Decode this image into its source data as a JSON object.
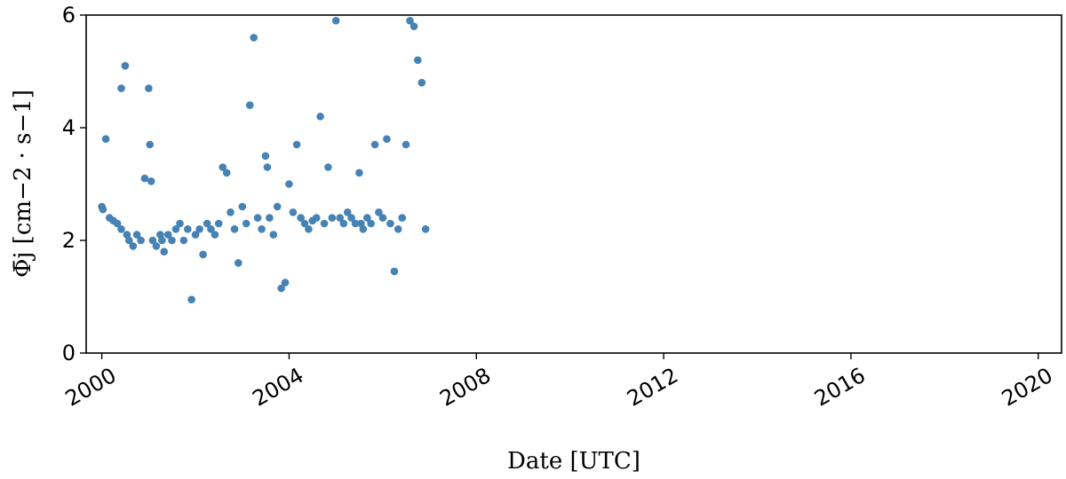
{
  "chart_data": {
    "type": "scatter",
    "title": "",
    "xlabel": "Date [UTC]",
    "ylabel": "Φ̄j [cm−2 · s−1]",
    "x_is_date": true,
    "xlim": [
      "1999-09-01",
      "2020-07-01"
    ],
    "ylim": [
      0,
      6
    ],
    "x_tick_labels": [
      "2000",
      "2004",
      "2008",
      "2012",
      "2016",
      "2020"
    ],
    "y_tick_labels": [
      "0",
      "2",
      "4",
      "6"
    ],
    "grid": false,
    "legend": false,
    "marker_color": "#4682b4",
    "series": [
      {
        "points": [
          [
            "2000-01-01",
            2.6
          ],
          [
            "2000-01-10",
            2.55
          ],
          [
            "2000-02-01",
            3.8
          ],
          [
            "2000-03-01",
            2.4
          ],
          [
            "2000-04-01",
            2.35
          ],
          [
            "2000-05-01",
            2.3
          ],
          [
            "2000-06-01",
            2.2
          ],
          [
            "2000-06-01",
            4.7
          ],
          [
            "2000-07-01",
            5.1
          ],
          [
            "2000-07-15",
            2.1
          ],
          [
            "2000-08-01",
            2.0
          ],
          [
            "2000-09-01",
            1.9
          ],
          [
            "2000-10-01",
            2.1
          ],
          [
            "2000-11-01",
            2.0
          ],
          [
            "2000-12-01",
            3.1
          ],
          [
            "2001-01-01",
            4.7
          ],
          [
            "2001-01-10",
            3.7
          ],
          [
            "2001-01-20",
            3.05
          ],
          [
            "2001-02-01",
            2.0
          ],
          [
            "2001-03-01",
            1.9
          ],
          [
            "2001-04-01",
            2.1
          ],
          [
            "2001-04-15",
            2.0
          ],
          [
            "2001-05-01",
            1.8
          ],
          [
            "2001-06-01",
            2.1
          ],
          [
            "2001-07-01",
            2.0
          ],
          [
            "2001-08-01",
            2.2
          ],
          [
            "2001-09-01",
            2.3
          ],
          [
            "2001-10-01",
            2.0
          ],
          [
            "2001-11-01",
            2.2
          ],
          [
            "2001-12-01",
            0.95
          ],
          [
            "2002-01-01",
            2.1
          ],
          [
            "2002-02-01",
            2.2
          ],
          [
            "2002-03-01",
            1.75
          ],
          [
            "2002-04-01",
            2.3
          ],
          [
            "2002-05-01",
            2.2
          ],
          [
            "2002-06-01",
            2.1
          ],
          [
            "2002-07-01",
            2.3
          ],
          [
            "2002-08-01",
            3.3
          ],
          [
            "2002-09-01",
            3.2
          ],
          [
            "2002-10-01",
            2.5
          ],
          [
            "2002-11-01",
            2.2
          ],
          [
            "2002-12-01",
            1.6
          ],
          [
            "2003-01-01",
            2.6
          ],
          [
            "2003-02-01",
            2.3
          ],
          [
            "2003-03-01",
            4.4
          ],
          [
            "2003-04-01",
            5.6
          ],
          [
            "2003-05-01",
            2.4
          ],
          [
            "2003-06-01",
            2.2
          ],
          [
            "2003-07-01",
            3.5
          ],
          [
            "2003-07-15",
            3.3
          ],
          [
            "2003-08-01",
            2.4
          ],
          [
            "2003-09-01",
            2.1
          ],
          [
            "2003-10-01",
            2.6
          ],
          [
            "2003-11-01",
            1.15
          ],
          [
            "2003-12-01",
            1.25
          ],
          [
            "2004-01-01",
            3.0
          ],
          [
            "2004-02-01",
            2.5
          ],
          [
            "2004-03-01",
            3.7
          ],
          [
            "2004-04-01",
            2.4
          ],
          [
            "2004-05-01",
            2.3
          ],
          [
            "2004-06-01",
            2.2
          ],
          [
            "2004-07-01",
            2.35
          ],
          [
            "2004-08-01",
            2.4
          ],
          [
            "2004-09-01",
            4.2
          ],
          [
            "2004-10-01",
            2.3
          ],
          [
            "2004-11-01",
            3.3
          ],
          [
            "2004-12-01",
            2.4
          ],
          [
            "2005-01-01",
            5.9
          ],
          [
            "2005-02-01",
            2.4
          ],
          [
            "2005-03-01",
            2.3
          ],
          [
            "2005-04-01",
            2.5
          ],
          [
            "2005-05-01",
            2.4
          ],
          [
            "2005-06-01",
            2.3
          ],
          [
            "2005-07-01",
            3.2
          ],
          [
            "2005-07-15",
            2.3
          ],
          [
            "2005-08-01",
            2.2
          ],
          [
            "2005-09-01",
            2.4
          ],
          [
            "2005-10-01",
            2.3
          ],
          [
            "2005-11-01",
            3.7
          ],
          [
            "2005-12-01",
            2.5
          ],
          [
            "2006-01-01",
            2.4
          ],
          [
            "2006-02-01",
            3.8
          ],
          [
            "2006-03-01",
            2.3
          ],
          [
            "2006-04-01",
            1.45
          ],
          [
            "2006-05-01",
            2.2
          ],
          [
            "2006-06-01",
            2.4
          ],
          [
            "2006-07-01",
            3.7
          ],
          [
            "2006-08-01",
            5.9
          ],
          [
            "2006-09-01",
            5.8
          ],
          [
            "2006-10-01",
            5.2
          ],
          [
            "2006-11-01",
            4.8
          ],
          [
            "2006-12-01",
            2.2
          ]
        ]
      }
    ]
  }
}
